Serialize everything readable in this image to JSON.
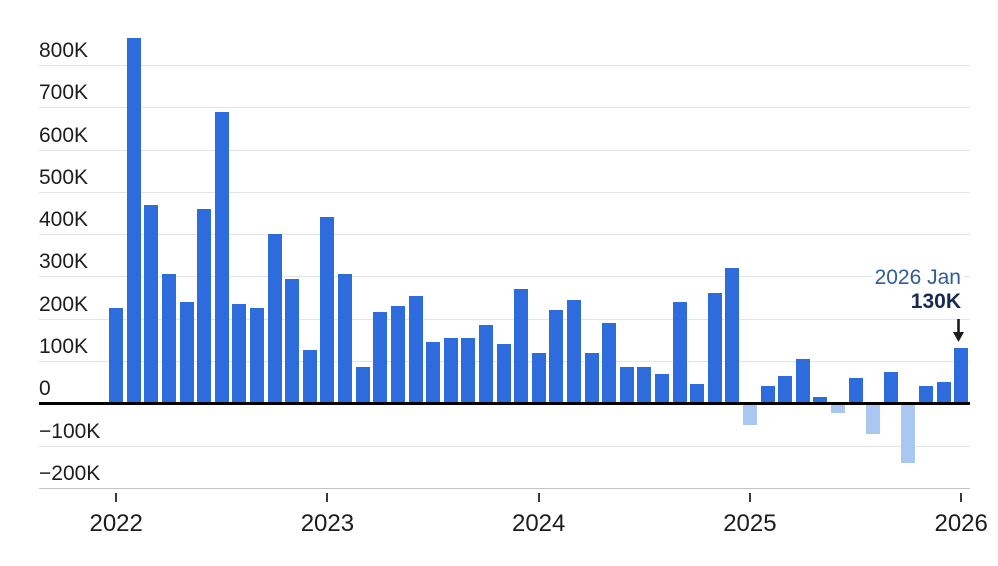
{
  "chart_data": {
    "type": "bar",
    "title": "",
    "xlabel": "",
    "ylabel": "",
    "unit": "K",
    "grid": true,
    "legend": "none",
    "ylim": [
      -200,
      900
    ],
    "categories": [
      "2022 Jan",
      "2022 Feb",
      "2022 Mar",
      "2022 Apr",
      "2022 May",
      "2022 Jun",
      "2022 Jul",
      "2022 Aug",
      "2022 Sep",
      "2022 Oct",
      "2022 Nov",
      "2022 Dec",
      "2023 Jan",
      "2023 Feb",
      "2023 Mar",
      "2023 Apr",
      "2023 May",
      "2023 Jun",
      "2023 Jul",
      "2023 Aug",
      "2023 Sep",
      "2023 Oct",
      "2023 Nov",
      "2023 Dec",
      "2024 Jan",
      "2024 Feb",
      "2024 Mar",
      "2024 Apr",
      "2024 May",
      "2024 Jun",
      "2024 Jul",
      "2024 Aug",
      "2024 Sep",
      "2024 Oct",
      "2024 Nov",
      "2024 Dec",
      "2025 Jan",
      "2025 Feb",
      "2025 Mar",
      "2025 Apr",
      "2025 May",
      "2025 Jun",
      "2025 Jul",
      "2025 Aug",
      "2025 Sep",
      "2025 Oct",
      "2025 Nov",
      "2025 Dec",
      "2026 Jan"
    ],
    "values": [
      225,
      865,
      470,
      305,
      240,
      460,
      690,
      235,
      225,
      400,
      295,
      125,
      440,
      305,
      85,
      215,
      230,
      255,
      145,
      155,
      155,
      185,
      140,
      270,
      120,
      220,
      245,
      120,
      190,
      85,
      85,
      70,
      240,
      45,
      260,
      320,
      -50,
      40,
      65,
      105,
      15,
      -20,
      60,
      -70,
      75,
      -140,
      40,
      50,
      130
    ],
    "yticks": [
      {
        "label": "800K",
        "value": 800
      },
      {
        "label": "700K",
        "value": 700
      },
      {
        "label": "600K",
        "value": 600
      },
      {
        "label": "500K",
        "value": 500
      },
      {
        "label": "400K",
        "value": 400
      },
      {
        "label": "300K",
        "value": 300
      },
      {
        "label": "200K",
        "value": 200
      },
      {
        "label": "100K",
        "value": 100
      },
      {
        "label": "0",
        "value": 0
      },
      {
        "label": "−100K",
        "value": -100
      },
      {
        "label": "−200K",
        "value": -200
      }
    ],
    "xticks": [
      {
        "label": "2022",
        "index": 0
      },
      {
        "label": "2023",
        "index": 12
      },
      {
        "label": "2024",
        "index": 24
      },
      {
        "label": "2025",
        "index": 36
      },
      {
        "label": "2026",
        "index": 48
      }
    ],
    "annotation": {
      "label": "2026 Jan",
      "value_label": "130K",
      "points_to": "2026 Jan"
    }
  },
  "colors": {
    "positive_bar": "#2e6cde",
    "negative_bar": "#a9c7f1",
    "zero_line": "#000000",
    "gridline": "#e4e4e4",
    "bottom_line": "#c4c4c4",
    "axis_text": "#1d1d1d",
    "tick": "#3a3a3a",
    "annotation_label": "#2f5d99",
    "annotation_value": "#172a54",
    "arrow": "#1c1c1c",
    "background": "#ffffff"
  }
}
